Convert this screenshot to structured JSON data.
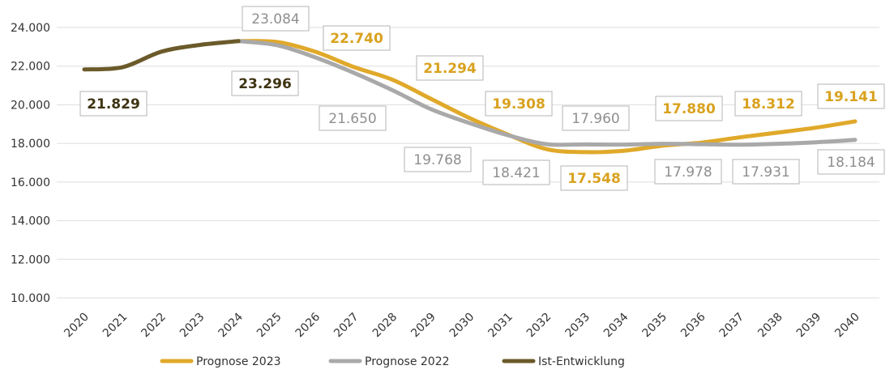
{
  "chart_data": {
    "type": "line",
    "title": "",
    "xlabel": "",
    "ylabel": "",
    "ylim": [
      10000,
      24000
    ],
    "y_ticks": [
      "10.000",
      "12.000",
      "14.000",
      "16.000",
      "18.000",
      "20.000",
      "22.000",
      "24.000"
    ],
    "categories": [
      "2020",
      "2021",
      "2022",
      "2023",
      "2024",
      "2025",
      "2026",
      "2027",
      "2028",
      "2029",
      "2030",
      "2031",
      "2032",
      "2033",
      "2034",
      "2035",
      "2036",
      "2037",
      "2038",
      "2039",
      "2040"
    ],
    "grid": true,
    "legend_position": "bottom",
    "series": [
      {
        "name": "Prognose 2023",
        "color": "#e0a92a",
        "values": [
          null,
          null,
          null,
          null,
          23296,
          23250,
          22740,
          21950,
          21294,
          20300,
          19308,
          18450,
          17700,
          17548,
          17620,
          17880,
          18040,
          18312,
          18560,
          18820,
          19141
        ]
      },
      {
        "name": "Prognose 2022",
        "color": "#a9a9a9",
        "values": [
          null,
          null,
          null,
          null,
          23296,
          23084,
          22450,
          21650,
          20750,
          19768,
          19050,
          18421,
          17960,
          17950,
          17940,
          17978,
          17960,
          17931,
          17980,
          18060,
          18184
        ]
      },
      {
        "name": "Ist-Entwicklung",
        "color": "#6b5a2a",
        "values": [
          21829,
          21950,
          22750,
          23100,
          23296,
          null,
          null,
          null,
          null,
          null,
          null,
          null,
          null,
          null,
          null,
          null,
          null,
          null,
          null,
          null,
          null
        ]
      }
    ],
    "annotations": [
      {
        "text": "21.829",
        "series": "Ist-Entwicklung",
        "index": 0
      },
      {
        "text": "23.296",
        "series": "Ist-Entwicklung",
        "index": 4
      },
      {
        "text": "23.084",
        "series": "Prognose 2022",
        "index": 5
      },
      {
        "text": "22.740",
        "series": "Prognose 2023",
        "index": 6
      },
      {
        "text": "21.650",
        "series": "Prognose 2022",
        "index": 7
      },
      {
        "text": "21.294",
        "series": "Prognose 2023",
        "index": 8
      },
      {
        "text": "19.768",
        "series": "Prognose 2022",
        "index": 9
      },
      {
        "text": "19.308",
        "series": "Prognose 2023",
        "index": 10
      },
      {
        "text": "18.421",
        "series": "Prognose 2022",
        "index": 11
      },
      {
        "text": "17.960",
        "series": "Prognose 2022",
        "index": 12
      },
      {
        "text": "17.548",
        "series": "Prognose 2023",
        "index": 13
      },
      {
        "text": "17.880",
        "series": "Prognose 2023",
        "index": 15
      },
      {
        "text": "17.978",
        "series": "Prognose 2022",
        "index": 15
      },
      {
        "text": "18.312",
        "series": "Prognose 2023",
        "index": 17
      },
      {
        "text": "17.931",
        "series": "Prognose 2022",
        "index": 17
      },
      {
        "text": "19.141",
        "series": "Prognose 2023",
        "index": 20
      },
      {
        "text": "18.184",
        "series": "Prognose 2022",
        "index": 20
      }
    ]
  }
}
